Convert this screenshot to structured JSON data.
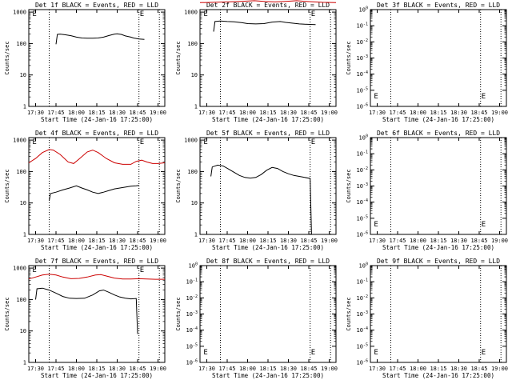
{
  "chart_data": [
    {
      "type": "line",
      "title": "Det 1f BLACK = Events, RED = LLD",
      "xlabel": "Start Time (24-Jan-16 17:25:00)",
      "ylabel": "Counts/sec",
      "x_ticks": [
        "17:30",
        "17:45",
        "18:00",
        "18:15",
        "18:30",
        "18:45",
        "19:00"
      ],
      "x_range_min": [
        -5,
        95
      ],
      "y_scale": "log",
      "y_ticks": [
        "1",
        "10",
        "100",
        "1000"
      ],
      "y_range": [
        1,
        1200
      ],
      "markers": [
        {
          "label": "E",
          "x": -3
        },
        {
          "label": "E",
          "x": 76
        }
      ],
      "vlines_min": [
        10,
        76,
        91
      ],
      "series": [
        {
          "color": "#000000",
          "points": [
            [
              15,
              95
            ],
            [
              16,
              195
            ],
            [
              18,
              200
            ],
            [
              22,
              190
            ],
            [
              26,
              178
            ],
            [
              30,
              160
            ],
            [
              34,
              150
            ],
            [
              38,
              148
            ],
            [
              42,
              148
            ],
            [
              46,
              150
            ],
            [
              50,
              160
            ],
            [
              54,
              180
            ],
            [
              58,
              200
            ],
            [
              60,
              205
            ],
            [
              63,
              195
            ],
            [
              66,
              175
            ],
            [
              70,
              160
            ],
            [
              72,
              150
            ],
            [
              74,
              145
            ],
            [
              76,
              140
            ],
            [
              80,
              135
            ]
          ]
        }
      ]
    },
    {
      "type": "line",
      "title": "Det 2f BLACK = Events, RED = LLD",
      "xlabel": "Start Time (24-Jan-16 17:25:00)",
      "ylabel": "Counts/sec",
      "x_ticks": [
        "17:30",
        "17:45",
        "18:00",
        "18:15",
        "18:30",
        "18:45",
        "19:00"
      ],
      "x_range_min": [
        -5,
        95
      ],
      "y_scale": "log",
      "y_ticks": [
        "1",
        "10",
        "100",
        "1000"
      ],
      "y_range": [
        1,
        1200
      ],
      "markers": [
        {
          "label": "E",
          "x": -3
        },
        {
          "label": "E",
          "x": 76
        }
      ],
      "vlines_min": [
        10,
        76,
        91
      ],
      "series": [
        {
          "color": "#cc0000",
          "points": [
            [
              -5,
              2000
            ],
            [
              5,
              2050
            ],
            [
              15,
              2100
            ],
            [
              25,
              2200
            ],
            [
              35,
              2300
            ],
            [
              42,
              2200
            ],
            [
              50,
              2100
            ],
            [
              58,
              2200
            ],
            [
              66,
              2300
            ],
            [
              75,
              2150
            ],
            [
              85,
              2050
            ],
            [
              95,
              2000
            ]
          ]
        },
        {
          "color": "#000000",
          "points": [
            [
              5,
              240
            ],
            [
              6,
              500
            ],
            [
              10,
              520
            ],
            [
              15,
              500
            ],
            [
              20,
              490
            ],
            [
              26,
              460
            ],
            [
              30,
              430
            ],
            [
              36,
              420
            ],
            [
              42,
              430
            ],
            [
              48,
              480
            ],
            [
              54,
              500
            ],
            [
              58,
              470
            ],
            [
              62,
              450
            ],
            [
              68,
              420
            ],
            [
              72,
              410
            ],
            [
              76,
              405
            ],
            [
              80,
              400
            ]
          ]
        }
      ]
    },
    {
      "type": "line",
      "title": "Det 3f BLACK = Events, RED = LLD",
      "xlabel": "Start Time (24-Jan-16 17:25:00)",
      "ylabel": "Counts/sec",
      "x_ticks": [
        "17:30",
        "17:45",
        "18:00",
        "18:15",
        "18:30",
        "18:45",
        "19:00"
      ],
      "x_range_min": [
        -5,
        95
      ],
      "y_scale": "log",
      "y_ticks": [
        "10^0",
        "10^-1",
        "10^-2",
        "10^-3",
        "10^-4",
        "10^-5",
        "10^-6"
      ],
      "y_range": [
        1,
        1e-06
      ],
      "markers": [
        {
          "label": "E",
          "x": -3
        },
        {
          "label": "E",
          "x": 76
        }
      ],
      "vlines_min": [
        10,
        76,
        91
      ],
      "series": []
    },
    {
      "type": "line",
      "title": "Det 4f BLACK = Events, RED = LLD",
      "xlabel": "Start Time (24-Jan-16 17:25:00)",
      "ylabel": "Counts/sec",
      "x_ticks": [
        "17:30",
        "17:45",
        "18:00",
        "18:15",
        "18:30",
        "18:45",
        "19:00"
      ],
      "x_range_min": [
        -5,
        95
      ],
      "y_scale": "log",
      "y_ticks": [
        "1",
        "10",
        "100",
        "1000"
      ],
      "y_range": [
        1,
        1200
      ],
      "markers": [
        {
          "label": "E",
          "x": -3
        },
        {
          "label": "E",
          "x": 76
        }
      ],
      "vlines_min": [
        10,
        76,
        91
      ],
      "series": [
        {
          "color": "#cc0000",
          "points": [
            [
              -5,
              190
            ],
            [
              0,
              260
            ],
            [
              5,
              400
            ],
            [
              10,
              500
            ],
            [
              13,
              480
            ],
            [
              18,
              350
            ],
            [
              24,
              200
            ],
            [
              28,
              180
            ],
            [
              32,
              250
            ],
            [
              38,
              420
            ],
            [
              42,
              480
            ],
            [
              46,
              400
            ],
            [
              52,
              260
            ],
            [
              58,
              190
            ],
            [
              64,
              170
            ],
            [
              70,
              170
            ],
            [
              74,
              210
            ],
            [
              78,
              230
            ],
            [
              82,
              200
            ],
            [
              86,
              180
            ],
            [
              90,
              180
            ],
            [
              95,
              190
            ]
          ]
        },
        {
          "color": "#000000",
          "points": [
            [
              10,
              12
            ],
            [
              11,
              20
            ],
            [
              15,
              22
            ],
            [
              20,
              26
            ],
            [
              25,
              30
            ],
            [
              30,
              35
            ],
            [
              34,
              30
            ],
            [
              38,
              26
            ],
            [
              42,
              22
            ],
            [
              46,
              20
            ],
            [
              50,
              22
            ],
            [
              54,
              25
            ],
            [
              58,
              28
            ],
            [
              62,
              30
            ],
            [
              66,
              32
            ],
            [
              70,
              34
            ],
            [
              74,
              35
            ],
            [
              76,
              36
            ]
          ]
        }
      ]
    },
    {
      "type": "line",
      "title": "Det 5f BLACK = Events, RED = LLD",
      "xlabel": "Start Time (24-Jan-16 17:25:00)",
      "ylabel": "Counts/sec",
      "x_ticks": [
        "17:30",
        "17:45",
        "18:00",
        "18:15",
        "18:30",
        "18:45",
        "19:00"
      ],
      "x_range_min": [
        -5,
        95
      ],
      "y_scale": "log",
      "y_ticks": [
        "1",
        "10",
        "100",
        "1000"
      ],
      "y_range": [
        1,
        1200
      ],
      "markers": [
        {
          "label": "E",
          "x": -3
        },
        {
          "label": "E",
          "x": 76
        }
      ],
      "vlines_min": [
        10,
        76,
        91
      ],
      "series": [
        {
          "color": "#000000",
          "points": [
            [
              3,
              70
            ],
            [
              4,
              140
            ],
            [
              8,
              160
            ],
            [
              12,
              150
            ],
            [
              16,
              120
            ],
            [
              20,
              95
            ],
            [
              24,
              75
            ],
            [
              28,
              65
            ],
            [
              32,
              62
            ],
            [
              36,
              65
            ],
            [
              40,
              80
            ],
            [
              44,
              110
            ],
            [
              48,
              135
            ],
            [
              52,
              125
            ],
            [
              56,
              100
            ],
            [
              60,
              85
            ],
            [
              64,
              75
            ],
            [
              68,
              70
            ],
            [
              72,
              65
            ],
            [
              76,
              60
            ],
            [
              77,
              1
            ]
          ]
        }
      ]
    },
    {
      "type": "line",
      "title": "Det 6f BLACK = Events, RED = LLD",
      "xlabel": "Start Time (24-Jan-16 17:25:00)",
      "ylabel": "Counts/sec",
      "x_ticks": [
        "17:30",
        "17:45",
        "18:00",
        "18:15",
        "18:30",
        "18:45",
        "19:00"
      ],
      "x_range_min": [
        -5,
        95
      ],
      "y_scale": "log",
      "y_ticks": [
        "10^0",
        "10^-1",
        "10^-2",
        "10^-3",
        "10^-4",
        "10^-5",
        "10^-6"
      ],
      "y_range": [
        1,
        1e-06
      ],
      "markers": [
        {
          "label": "E",
          "x": -3
        },
        {
          "label": "E",
          "x": 76
        }
      ],
      "vlines_min": [
        10,
        76,
        91
      ],
      "series": []
    },
    {
      "type": "line",
      "title": "Det 7f BLACK = Events, RED = LLD",
      "xlabel": "Start Time (24-Jan-16 17:25:00)",
      "ylabel": "Counts/sec",
      "x_ticks": [
        "17:30",
        "17:45",
        "18:00",
        "18:15",
        "18:30",
        "18:45",
        "19:00"
      ],
      "x_range_min": [
        -5,
        95
      ],
      "y_scale": "log",
      "y_ticks": [
        "1",
        "10",
        "100",
        "1000"
      ],
      "y_range": [
        1,
        1200
      ],
      "markers": [
        {
          "label": "E",
          "x": -3
        },
        {
          "label": "E",
          "x": 76
        }
      ],
      "vlines_min": [
        10,
        76,
        91
      ],
      "series": [
        {
          "color": "#cc0000",
          "points": [
            [
              -5,
              450
            ],
            [
              0,
              520
            ],
            [
              5,
              600
            ],
            [
              10,
              640
            ],
            [
              15,
              600
            ],
            [
              20,
              520
            ],
            [
              26,
              460
            ],
            [
              32,
              470
            ],
            [
              38,
              520
            ],
            [
              44,
              600
            ],
            [
              48,
              620
            ],
            [
              52,
              560
            ],
            [
              58,
              480
            ],
            [
              64,
              450
            ],
            [
              70,
              450
            ],
            [
              76,
              460
            ],
            [
              82,
              450
            ],
            [
              88,
              440
            ],
            [
              95,
              440
            ]
          ]
        },
        {
          "color": "#000000",
          "points": [
            [
              0,
              100
            ],
            [
              1,
              220
            ],
            [
              5,
              230
            ],
            [
              10,
              200
            ],
            [
              15,
              160
            ],
            [
              20,
              125
            ],
            [
              25,
              110
            ],
            [
              30,
              108
            ],
            [
              36,
              110
            ],
            [
              42,
              140
            ],
            [
              47,
              190
            ],
            [
              50,
              200
            ],
            [
              54,
              170
            ],
            [
              58,
              140
            ],
            [
              62,
              120
            ],
            [
              66,
              110
            ],
            [
              70,
              105
            ],
            [
              74,
              108
            ],
            [
              75,
              8
            ]
          ]
        }
      ]
    },
    {
      "type": "line",
      "title": "Det 8f BLACK = Events, RED = LLD",
      "xlabel": "Start Time (24-Jan-16 17:25:00)",
      "ylabel": "Counts/sec",
      "x_ticks": [
        "17:30",
        "17:45",
        "18:00",
        "18:15",
        "18:30",
        "18:45",
        "19:00"
      ],
      "x_range_min": [
        -5,
        95
      ],
      "y_scale": "log",
      "y_ticks": [
        "10^0",
        "10^-1",
        "10^-2",
        "10^-3",
        "10^-4",
        "10^-5",
        "10^-6"
      ],
      "y_range": [
        1,
        1e-06
      ],
      "markers": [
        {
          "label": "E",
          "x": -3
        },
        {
          "label": "E",
          "x": 76
        }
      ],
      "vlines_min": [
        10,
        76,
        91
      ],
      "series": []
    },
    {
      "type": "line",
      "title": "Det 9f BLACK = Events, RED = LLD",
      "xlabel": "Start Time (24-Jan-16 17:25:00)",
      "ylabel": "Counts/sec",
      "x_ticks": [
        "17:30",
        "17:45",
        "18:00",
        "18:15",
        "18:30",
        "18:45",
        "19:00"
      ],
      "x_range_min": [
        -5,
        95
      ],
      "y_scale": "log",
      "y_ticks": [
        "10^0",
        "10^-1",
        "10^-2",
        "10^-3",
        "10^-4",
        "10^-5",
        "10^-6"
      ],
      "y_range": [
        1,
        1e-06
      ],
      "markers": [
        {
          "label": "E",
          "x": -3
        },
        {
          "label": "E",
          "x": 76
        }
      ],
      "vlines_min": [
        10,
        76,
        91
      ],
      "series": []
    }
  ]
}
